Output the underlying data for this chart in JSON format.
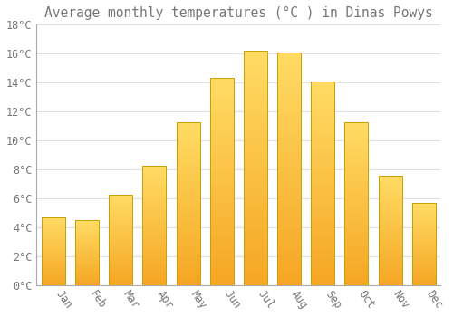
{
  "months": [
    "Jan",
    "Feb",
    "Mar",
    "Apr",
    "May",
    "Jun",
    "Jul",
    "Aug",
    "Sep",
    "Oct",
    "Nov",
    "Dec"
  ],
  "values": [
    4.7,
    4.5,
    6.3,
    8.3,
    11.3,
    14.3,
    16.2,
    16.1,
    14.1,
    11.3,
    7.6,
    5.7
  ],
  "title": "Average monthly temperatures (°C ) in Dinas Powys",
  "bar_color_bottom": "#F5A623",
  "bar_color_top": "#FFD966",
  "bar_edge_color": "#C8A000",
  "background_color": "#FFFFFF",
  "grid_color": "#E0E0E0",
  "text_color": "#777777",
  "ylim": [
    0,
    18
  ],
  "ytick_step": 2,
  "title_fontsize": 10.5,
  "tick_fontsize": 8.5
}
